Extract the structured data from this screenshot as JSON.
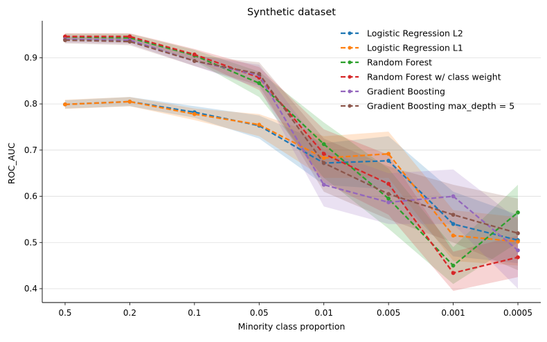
{
  "chart_data": {
    "type": "line",
    "title": "Synthetic dataset",
    "xlabel": "Minority class proportion",
    "ylabel": "ROC_AUC",
    "categories": [
      "0.5",
      "0.2",
      "0.1",
      "0.05",
      "0.01",
      "0.005",
      "0.001",
      "0.0005"
    ],
    "ylim": [
      0.37,
      0.98
    ],
    "yticks": [
      "0.4",
      "0.5",
      "0.6",
      "0.7",
      "0.8",
      "0.9"
    ],
    "grid": "horizontal",
    "legend_position": "top-right",
    "line_style": "dashed with circular markers",
    "series": [
      {
        "name": "Logistic Regression L2",
        "color": "#1f77b4",
        "values": [
          0.799,
          0.805,
          0.782,
          0.753,
          0.672,
          0.677,
          0.54,
          0.505
        ],
        "band_low": [
          0.79,
          0.795,
          0.77,
          0.725,
          0.625,
          0.615,
          0.47,
          0.455
        ],
        "band_high": [
          0.808,
          0.815,
          0.795,
          0.775,
          0.715,
          0.73,
          0.61,
          0.56
        ]
      },
      {
        "name": "Logistic Regression L1",
        "color": "#ff7f0e",
        "values": [
          0.799,
          0.805,
          0.778,
          0.755,
          0.683,
          0.692,
          0.515,
          0.502
        ],
        "band_low": [
          0.789,
          0.795,
          0.765,
          0.73,
          0.64,
          0.64,
          0.46,
          0.45
        ],
        "band_high": [
          0.809,
          0.815,
          0.79,
          0.778,
          0.73,
          0.74,
          0.57,
          0.555
        ]
      },
      {
        "name": "Random Forest",
        "color": "#2ca02c",
        "values": [
          0.945,
          0.943,
          0.905,
          0.845,
          0.713,
          0.595,
          0.45,
          0.565
        ],
        "band_low": [
          0.938,
          0.935,
          0.893,
          0.815,
          0.64,
          0.53,
          0.41,
          0.5
        ],
        "band_high": [
          0.952,
          0.952,
          0.917,
          0.87,
          0.76,
          0.66,
          0.49,
          0.625
        ]
      },
      {
        "name": "Random Forest w/ class weight",
        "color": "#d62728",
        "values": [
          0.946,
          0.946,
          0.907,
          0.857,
          0.692,
          0.627,
          0.434,
          0.468
        ],
        "band_low": [
          0.939,
          0.939,
          0.895,
          0.83,
          0.63,
          0.56,
          0.395,
          0.425
        ],
        "band_high": [
          0.953,
          0.953,
          0.919,
          0.88,
          0.745,
          0.69,
          0.48,
          0.515
        ]
      },
      {
        "name": "Gradient Boosting",
        "color": "#9467bd",
        "values": [
          0.94,
          0.938,
          0.893,
          0.862,
          0.625,
          0.587,
          0.6,
          0.483
        ],
        "band_low": [
          0.933,
          0.93,
          0.882,
          0.835,
          0.578,
          0.54,
          0.54,
          0.4
        ],
        "band_high": [
          0.947,
          0.946,
          0.905,
          0.885,
          0.7,
          0.65,
          0.658,
          0.55
        ]
      },
      {
        "name": "Gradient Boosting max_depth = 5",
        "color": "#8c564b",
        "values": [
          0.938,
          0.935,
          0.893,
          0.865,
          0.672,
          0.605,
          0.56,
          0.52
        ],
        "band_low": [
          0.931,
          0.927,
          0.882,
          0.84,
          0.61,
          0.55,
          0.5,
          0.44
        ],
        "band_high": [
          0.945,
          0.943,
          0.905,
          0.89,
          0.725,
          0.665,
          0.625,
          0.595
        ]
      }
    ]
  }
}
